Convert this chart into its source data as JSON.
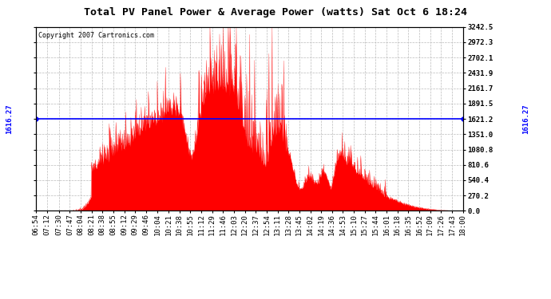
{
  "title": "Total PV Panel Power & Average Power (watts) Sat Oct 6 18:24",
  "copyright": "Copyright 2007 Cartronics.com",
  "average_power": 1616.27,
  "y_max": 3242.5,
  "y_min": 0.0,
  "y_ticks": [
    0.0,
    270.2,
    540.4,
    810.6,
    1080.8,
    1351.0,
    1621.2,
    1891.5,
    2161.7,
    2431.9,
    2702.1,
    2972.3,
    3242.5
  ],
  "x_labels": [
    "06:54",
    "07:12",
    "07:30",
    "07:47",
    "08:04",
    "08:21",
    "08:38",
    "08:55",
    "09:12",
    "09:29",
    "09:46",
    "10:04",
    "10:21",
    "10:38",
    "10:55",
    "11:12",
    "11:29",
    "11:46",
    "12:03",
    "12:20",
    "12:37",
    "12:54",
    "13:11",
    "13:28",
    "13:45",
    "14:02",
    "14:19",
    "14:36",
    "14:53",
    "15:10",
    "15:27",
    "15:44",
    "16:01",
    "16:18",
    "16:35",
    "16:52",
    "17:09",
    "17:26",
    "17:43",
    "18:00"
  ],
  "fill_color": "#FF0000",
  "avg_line_color": "#0000FF",
  "bg_color": "#FFFFFF",
  "grid_color": "#BBBBBB",
  "title_fontsize": 9.5,
  "tick_fontsize": 6.5,
  "copyright_fontsize": 6,
  "avg_label_fontsize": 6.5
}
